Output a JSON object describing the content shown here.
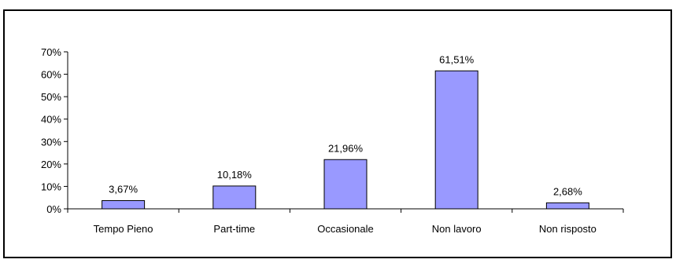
{
  "chart_data": {
    "type": "bar",
    "categories": [
      "Tempo Pieno",
      "Part-time",
      "Occasionale",
      "Non lavoro",
      "Non risposto"
    ],
    "values": [
      3.67,
      10.18,
      21.96,
      61.51,
      2.68
    ],
    "data_labels": [
      "3,67%",
      "10,18%",
      "21,96%",
      "61,51%",
      "2,68%"
    ],
    "ylim": [
      0,
      70
    ],
    "y_ticks": [
      0,
      10,
      20,
      30,
      40,
      50,
      60,
      70
    ],
    "y_tick_labels": [
      "0%",
      "10%",
      "20%",
      "30%",
      "40%",
      "50%",
      "60%",
      "70%"
    ],
    "grid": false,
    "legend": "none",
    "bar_color": "#9999ff",
    "bar_edge_color": "#000000"
  }
}
